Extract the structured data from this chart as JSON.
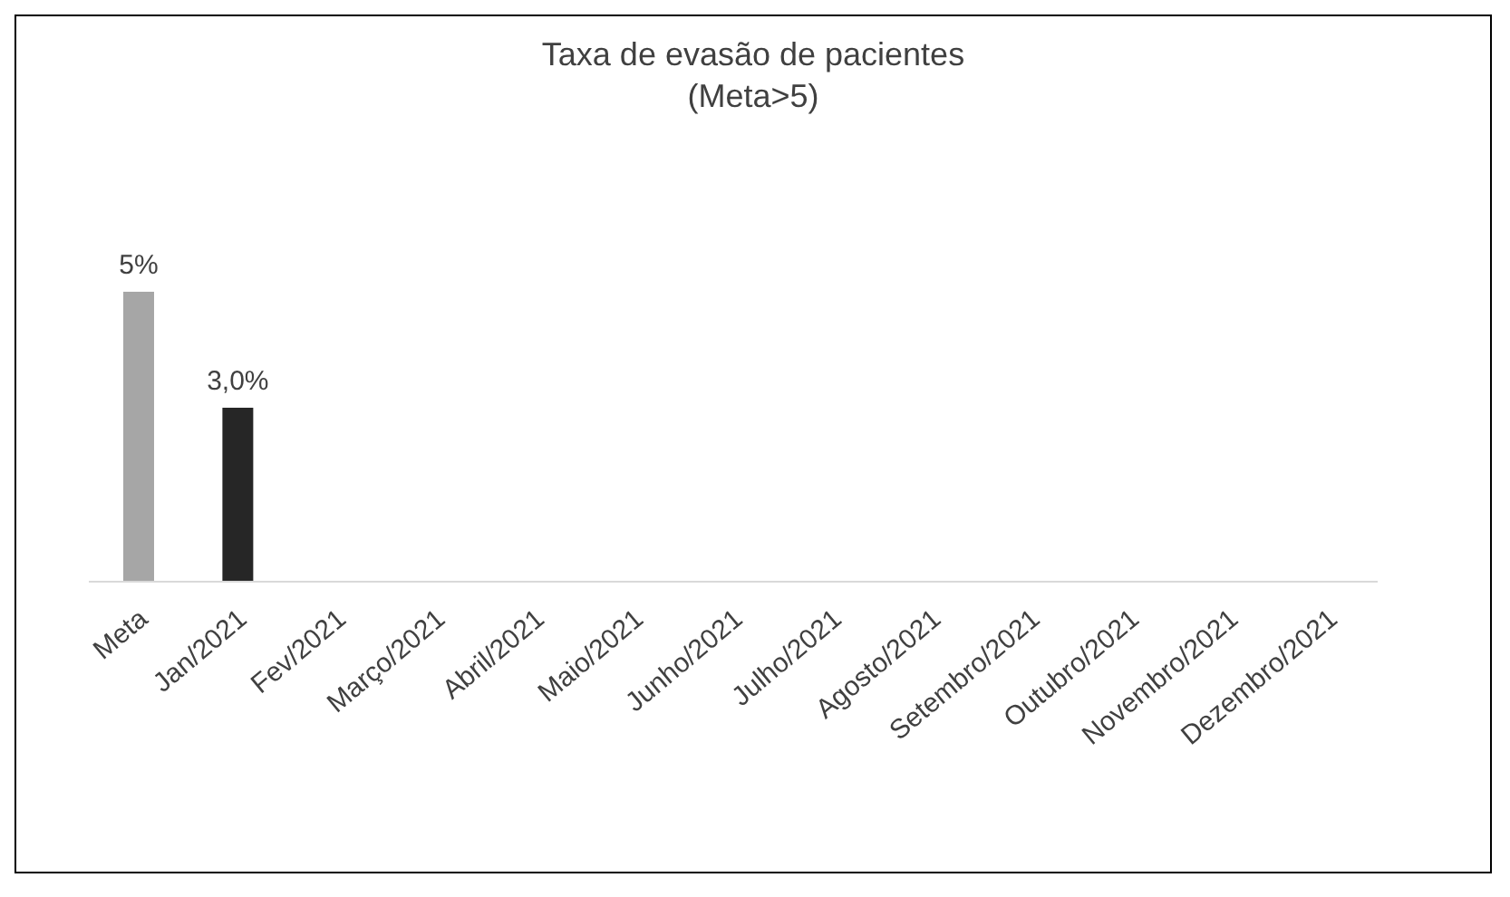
{
  "chart_data": {
    "type": "bar",
    "title": "Taxa de evasão de pacientes",
    "subtitle": "(Meta>5)",
    "categories": [
      "Meta",
      "Jan/2021",
      "Fev/2021",
      "Março/2021",
      "Abril/2021",
      "Maio/2021",
      "Junho/2021",
      "Julho/2021",
      "Agosto/2021",
      "Setembro/2021",
      "Outubro/2021",
      "Novembro/2021",
      "Dezembro/2021"
    ],
    "values": [
      5,
      3.0,
      null,
      null,
      null,
      null,
      null,
      null,
      null,
      null,
      null,
      null,
      null
    ],
    "value_labels": [
      "5%",
      "3,0%",
      null,
      null,
      null,
      null,
      null,
      null,
      null,
      null,
      null,
      null,
      null
    ],
    "colors": [
      "#a6a6a6",
      "#262626",
      "#262626",
      "#262626",
      "#262626",
      "#262626",
      "#262626",
      "#262626",
      "#262626",
      "#262626",
      "#262626",
      "#262626",
      "#262626"
    ],
    "grid": false,
    "legend": false
  }
}
